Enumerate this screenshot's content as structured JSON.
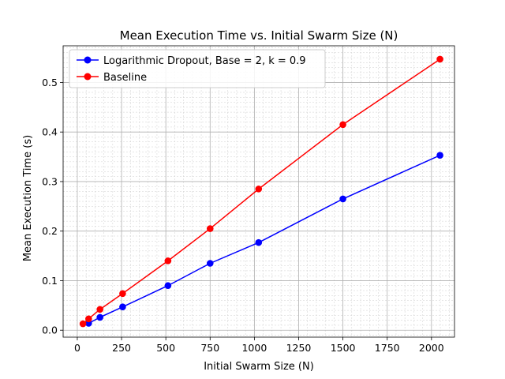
{
  "chart_data": {
    "type": "line",
    "title": "Mean Execution Time vs. Initial Swarm Size (N)",
    "xlabel": "Initial Swarm Size (N)",
    "ylabel": "Mean Execution Time (s)",
    "xlim": [
      -80,
      2130
    ],
    "ylim": [
      -0.014,
      0.574
    ],
    "xticks": [
      0,
      250,
      500,
      750,
      1000,
      1250,
      1500,
      1750,
      2000
    ],
    "yticks": [
      0.0,
      0.1,
      0.2,
      0.3,
      0.4,
      0.5
    ],
    "xtick_labels": [
      "0",
      "250",
      "500",
      "750",
      "1000",
      "1250",
      "1500",
      "1750",
      "2000"
    ],
    "ytick_labels": [
      "0.0",
      "0.1",
      "0.2",
      "0.3",
      "0.4",
      "0.5"
    ],
    "grid": true,
    "minor_grid": true,
    "legend_position": "top-left",
    "series": [
      {
        "name": "Logarithmic Dropout, Base = 2, k = 0.9",
        "color": "#0000ff",
        "x": [
          64,
          128,
          256,
          512,
          750,
          1024,
          1500,
          2048
        ],
        "y": [
          0.014,
          0.026,
          0.047,
          0.09,
          0.135,
          0.177,
          0.265,
          0.353
        ]
      },
      {
        "name": "Baseline",
        "color": "#ff0000",
        "x": [
          32,
          64,
          128,
          256,
          512,
          750,
          1024,
          1500,
          2048
        ],
        "y": [
          0.013,
          0.023,
          0.042,
          0.074,
          0.14,
          0.205,
          0.285,
          0.415,
          0.547
        ]
      }
    ]
  }
}
